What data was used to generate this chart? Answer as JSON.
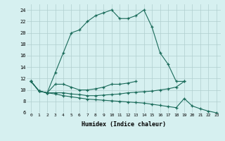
{
  "xlabel": "Humidex (Indice chaleur)",
  "x": [
    0,
    1,
    2,
    3,
    4,
    5,
    6,
    7,
    8,
    9,
    10,
    11,
    12,
    13,
    14,
    15,
    16,
    17,
    18,
    19,
    20,
    21,
    22,
    23
  ],
  "line1": [
    11.5,
    9.8,
    9.5,
    13.0,
    16.5,
    20.0,
    20.5,
    22.0,
    23.0,
    23.5,
    24.0,
    22.5,
    22.5,
    23.0,
    24.0,
    21.0,
    16.5,
    14.5,
    11.5,
    11.5,
    null,
    null,
    null,
    null
  ],
  "line2": [
    11.5,
    9.8,
    9.5,
    11.0,
    11.0,
    10.5,
    10.0,
    10.0,
    10.2,
    10.5,
    11.0,
    11.0,
    11.2,
    11.5,
    null,
    null,
    null,
    null,
    null,
    null,
    null,
    null,
    null,
    null
  ],
  "line3": [
    11.5,
    9.8,
    9.5,
    9.5,
    9.5,
    9.3,
    9.2,
    9.0,
    9.0,
    9.1,
    9.2,
    9.3,
    9.5,
    9.6,
    9.7,
    9.8,
    10.0,
    10.2,
    10.5,
    11.5,
    null,
    null,
    null,
    null
  ],
  "line4": [
    11.5,
    9.8,
    9.5,
    9.3,
    9.0,
    8.8,
    8.6,
    8.4,
    8.3,
    8.2,
    8.1,
    8.0,
    7.9,
    7.8,
    7.7,
    7.5,
    7.3,
    7.1,
    6.9,
    8.5,
    7.2,
    6.7,
    6.3,
    6.0
  ],
  "ylim": [
    6,
    25
  ],
  "yticks": [
    6,
    8,
    10,
    12,
    14,
    16,
    18,
    20,
    22,
    24
  ],
  "xlim": [
    -0.5,
    23.5
  ],
  "line_color": "#1a6b5a",
  "bg_color": "#d6f0f0",
  "grid_color": "#b0cece"
}
